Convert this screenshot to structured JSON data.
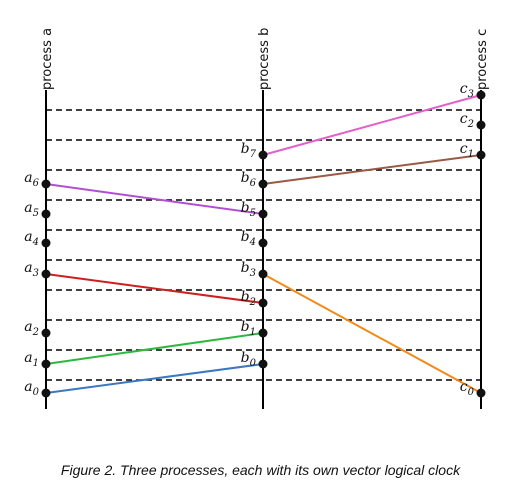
{
  "processes": [
    {
      "label": "process a",
      "events": [
        "a0",
        "a1",
        "a2",
        "a3",
        "a4",
        "a5",
        "a6"
      ]
    },
    {
      "label": "process b",
      "events": [
        "b0",
        "b1",
        "b2",
        "b3",
        "b4",
        "b5",
        "b6",
        "b7"
      ]
    },
    {
      "label": "process c",
      "events": [
        "c0",
        "c1",
        "c2",
        "c3"
      ]
    }
  ],
  "messages": [
    {
      "from": "a0",
      "to": "b0",
      "color": "#3a78c2"
    },
    {
      "from": "a1",
      "to": "b1",
      "color": "#2db83d"
    },
    {
      "from": "a3",
      "to": "b2",
      "color": "#cc1f1f"
    },
    {
      "from": "b3",
      "to": "c0",
      "color": "#f28a1a"
    },
    {
      "from": "a6",
      "to": "b5",
      "color": "#b24fd1"
    },
    {
      "from": "b6",
      "to": "c1",
      "color": "#9a5a44"
    },
    {
      "from": "b7",
      "to": "c3",
      "color": "#e45fc9"
    }
  ],
  "caption": "Figure 2. Three processes, each with its own vector logical clock"
}
